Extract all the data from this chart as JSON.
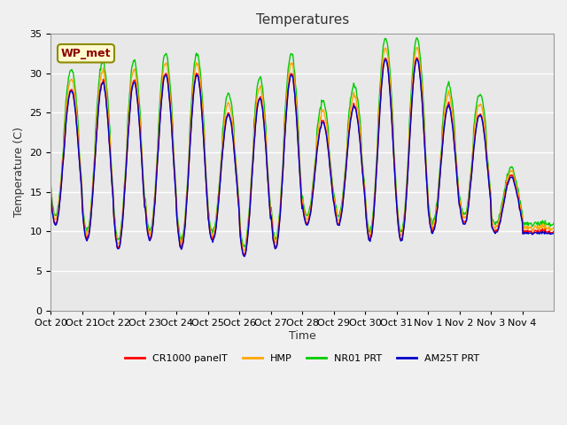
{
  "title": "Temperatures",
  "ylabel": "Temperature (C)",
  "xlabel": "Time",
  "annotation": "WP_met",
  "ylim": [
    0,
    35
  ],
  "yticks": [
    0,
    5,
    10,
    15,
    20,
    25,
    30,
    35
  ],
  "x_tick_labels": [
    "Oct 20",
    "Oct 21",
    "Oct 22",
    "Oct 23",
    "Oct 24",
    "Oct 25",
    "Oct 26",
    "Oct 27",
    "Oct 28",
    "Oct 29",
    "Oct 30",
    "Oct 31",
    "Nov 1",
    "Nov 2",
    "Nov 3",
    "Nov 4"
  ],
  "series_names": [
    "CR1000 panelT",
    "HMP",
    "NR01 PRT",
    "AM25T PRT"
  ],
  "series_colors": [
    "#ff0000",
    "#ffa500",
    "#00cc00",
    "#0000cc"
  ],
  "plot_bg_color": "#e8e8e8",
  "fig_bg_color": "#f0f0f0",
  "grid_color": "#ffffff",
  "title_fontsize": 11,
  "axis_fontsize": 9,
  "tick_fontsize": 8,
  "legend_fontsize": 8
}
